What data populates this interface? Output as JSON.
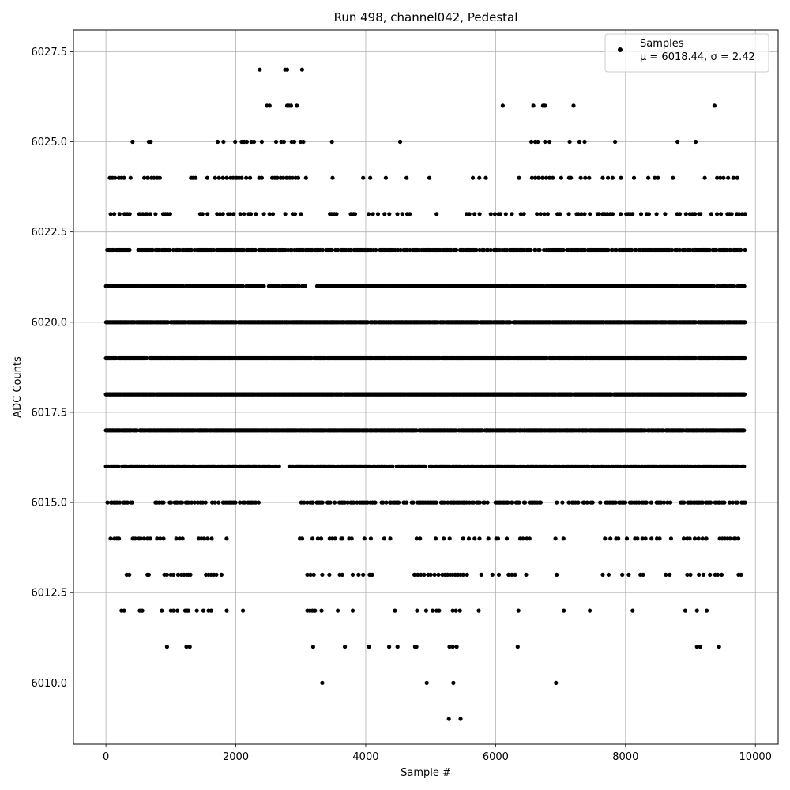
{
  "chart_data": {
    "type": "scatter",
    "title": "Run 498, channel042, Pedestal",
    "xlabel": "Sample #",
    "ylabel": "ADC Counts",
    "xlim": [
      -500,
      10350
    ],
    "ylim": [
      6008.3,
      6028.1
    ],
    "xticks": [
      0,
      2000,
      4000,
      6000,
      8000,
      10000
    ],
    "xtick_labels": [
      "0",
      "2000",
      "4000",
      "6000",
      "8000",
      "10000"
    ],
    "yticks": [
      6010.0,
      6012.5,
      6015.0,
      6017.5,
      6020.0,
      6022.5,
      6025.0,
      6027.5
    ],
    "ytick_labels": [
      "6010.0",
      "6012.5",
      "6015.0",
      "6017.5",
      "6020.0",
      "6022.5",
      "6025.0",
      "6027.5"
    ],
    "grid": true,
    "legend": {
      "position": "top-right",
      "entries": [
        "Samples",
        "μ = 6018.44, σ = 2.42"
      ]
    },
    "series": [
      {
        "name": "Samples",
        "color": "#000000",
        "x_range": [
          0,
          9840
        ],
        "n_samples": 9840,
        "mean": 6018.44,
        "sigma": 2.42
      }
    ],
    "levels": [
      {
        "y": 6009,
        "x": [
          5280,
          5460
        ]
      },
      {
        "y": 6010,
        "x": [
          3330,
          4940,
          5350,
          6930
        ]
      },
      {
        "y": 6011,
        "x": [
          940,
          1240,
          1290,
          3190,
          3680,
          4050,
          4360,
          4490,
          4760,
          4780,
          5290,
          5340,
          5400,
          6340,
          9100,
          9150,
          9440
        ]
      },
      {
        "y": 6012,
        "x": [
          240,
          280,
          520,
          560,
          860,
          1000,
          1040,
          1100,
          1220,
          1250,
          1270,
          1400,
          1500,
          1580,
          1620,
          1860,
          2110,
          3100,
          3140,
          3180,
          3220,
          3320,
          3570,
          3800,
          4450,
          4790,
          4930,
          5030,
          5090,
          5130,
          5340,
          5390,
          5450,
          5740,
          6350,
          7050,
          7450,
          8110,
          8920,
          9100,
          9250
        ]
      },
      {
        "y": 6013,
        "x": [
          320,
          360,
          640,
          660,
          900,
          940,
          1000,
          1040,
          1110,
          1160,
          1200,
          1240,
          1270,
          1300,
          1540,
          1580,
          1620,
          1660,
          1700,
          1780,
          3100,
          3150,
          3200,
          3330,
          3440,
          3600,
          3640,
          3800,
          3890,
          3960,
          4060,
          4100,
          4750,
          4800,
          4850,
          4900,
          4960,
          5000,
          5060,
          5120,
          5180,
          5220,
          5260,
          5300,
          5340,
          5380,
          5420,
          5460,
          5500,
          5560,
          5780,
          5950,
          6050,
          6200,
          6250,
          6300,
          6470,
          6940,
          7650,
          7740,
          7950,
          8050,
          8230,
          8270,
          8620,
          8680,
          8950,
          9000,
          9130,
          9200,
          9300,
          9380,
          9420,
          9480,
          9740,
          9780
        ]
      },
      {
        "y": 6014,
        "step": 42,
        "density": 0.42,
        "x_range": [
          0,
          9840
        ],
        "gaps": [
          [
            1900,
            2950
          ],
          [
            4600,
            4720
          ],
          [
            6560,
            6900
          ],
          [
            7060,
            7620
          ]
        ]
      },
      {
        "y": 6015,
        "step": 24,
        "density": 0.62,
        "x_range": [
          0,
          9840
        ],
        "gaps": [
          [
            420,
            760
          ],
          [
            2360,
            2540
          ],
          [
            2620,
            2980
          ],
          [
            6700,
            6900
          ]
        ]
      },
      {
        "y": 6016,
        "step": 18,
        "density": 0.8,
        "x_range": [
          0,
          9840
        ],
        "gaps": [
          [
            2680,
            2820
          ]
        ]
      },
      {
        "y": 6017,
        "step": 13,
        "density": 0.9,
        "x_range": [
          0,
          9840
        ],
        "gaps": []
      },
      {
        "y": 6018,
        "step": 11,
        "density": 0.97,
        "x_range": [
          0,
          9840
        ],
        "gaps": []
      },
      {
        "y": 6019,
        "step": 12,
        "density": 0.93,
        "x_range": [
          0,
          9840
        ],
        "gaps": []
      },
      {
        "y": 6020,
        "step": 12,
        "density": 0.93,
        "x_range": [
          0,
          9840
        ],
        "gaps": []
      },
      {
        "y": 6021,
        "step": 16,
        "density": 0.82,
        "x_range": [
          0,
          9840
        ],
        "gaps": [
          [
            3080,
            3240
          ]
        ]
      },
      {
        "y": 6022,
        "step": 20,
        "density": 0.78,
        "x_range": [
          0,
          9840
        ],
        "gaps": []
      },
      {
        "y": 6023,
        "step": 40,
        "density": 0.55,
        "x_range": [
          0,
          9840
        ],
        "gaps": [
          [
            1000,
            1300
          ],
          [
            3100,
            3400
          ],
          [
            4700,
            5000
          ],
          [
            5200,
            5550
          ]
        ]
      },
      {
        "y": 6024,
        "x": [
          60,
          100,
          140,
          200,
          240,
          280,
          380,
          590,
          640,
          700,
          740,
          790,
          830,
          1310,
          1340,
          1380,
          1560,
          1680,
          1740,
          1800,
          1860,
          1920,
          1960,
          2010,
          2050,
          2090,
          2160,
          2220,
          2360,
          2400,
          2560,
          2600,
          2640,
          2690,
          2730,
          2780,
          2830,
          2870,
          2920,
          2960,
          3080,
          3490,
          3960,
          4070,
          4310,
          4630,
          4980,
          5650,
          5750,
          5850,
          6360,
          6560,
          6610,
          6660,
          6720,
          6780,
          6830,
          6880,
          7010,
          7130,
          7160,
          7310,
          7380,
          7440,
          7650,
          7730,
          7800,
          7930,
          8130,
          8350,
          8450,
          8500,
          8730,
          9220,
          9410,
          9460,
          9510,
          9580,
          9660,
          9720
        ]
      },
      {
        "y": 6025,
        "x": [
          410,
          660,
          690,
          1720,
          1810,
          1990,
          2090,
          2130,
          2170,
          2240,
          2280,
          2400,
          2620,
          2700,
          2740,
          2860,
          2900,
          3000,
          3040,
          3480,
          4530,
          6550,
          6610,
          6650,
          6760,
          6830,
          7140,
          7290,
          7370,
          7840,
          8800,
          9080
        ]
      },
      {
        "y": 6026,
        "x": [
          2480,
          2520,
          2790,
          2820,
          2850,
          2940,
          6110,
          6580,
          6730,
          6760,
          7200,
          9370
        ]
      },
      {
        "y": 6027,
        "x": [
          2370,
          2760,
          2790,
          3020
        ]
      }
    ]
  }
}
